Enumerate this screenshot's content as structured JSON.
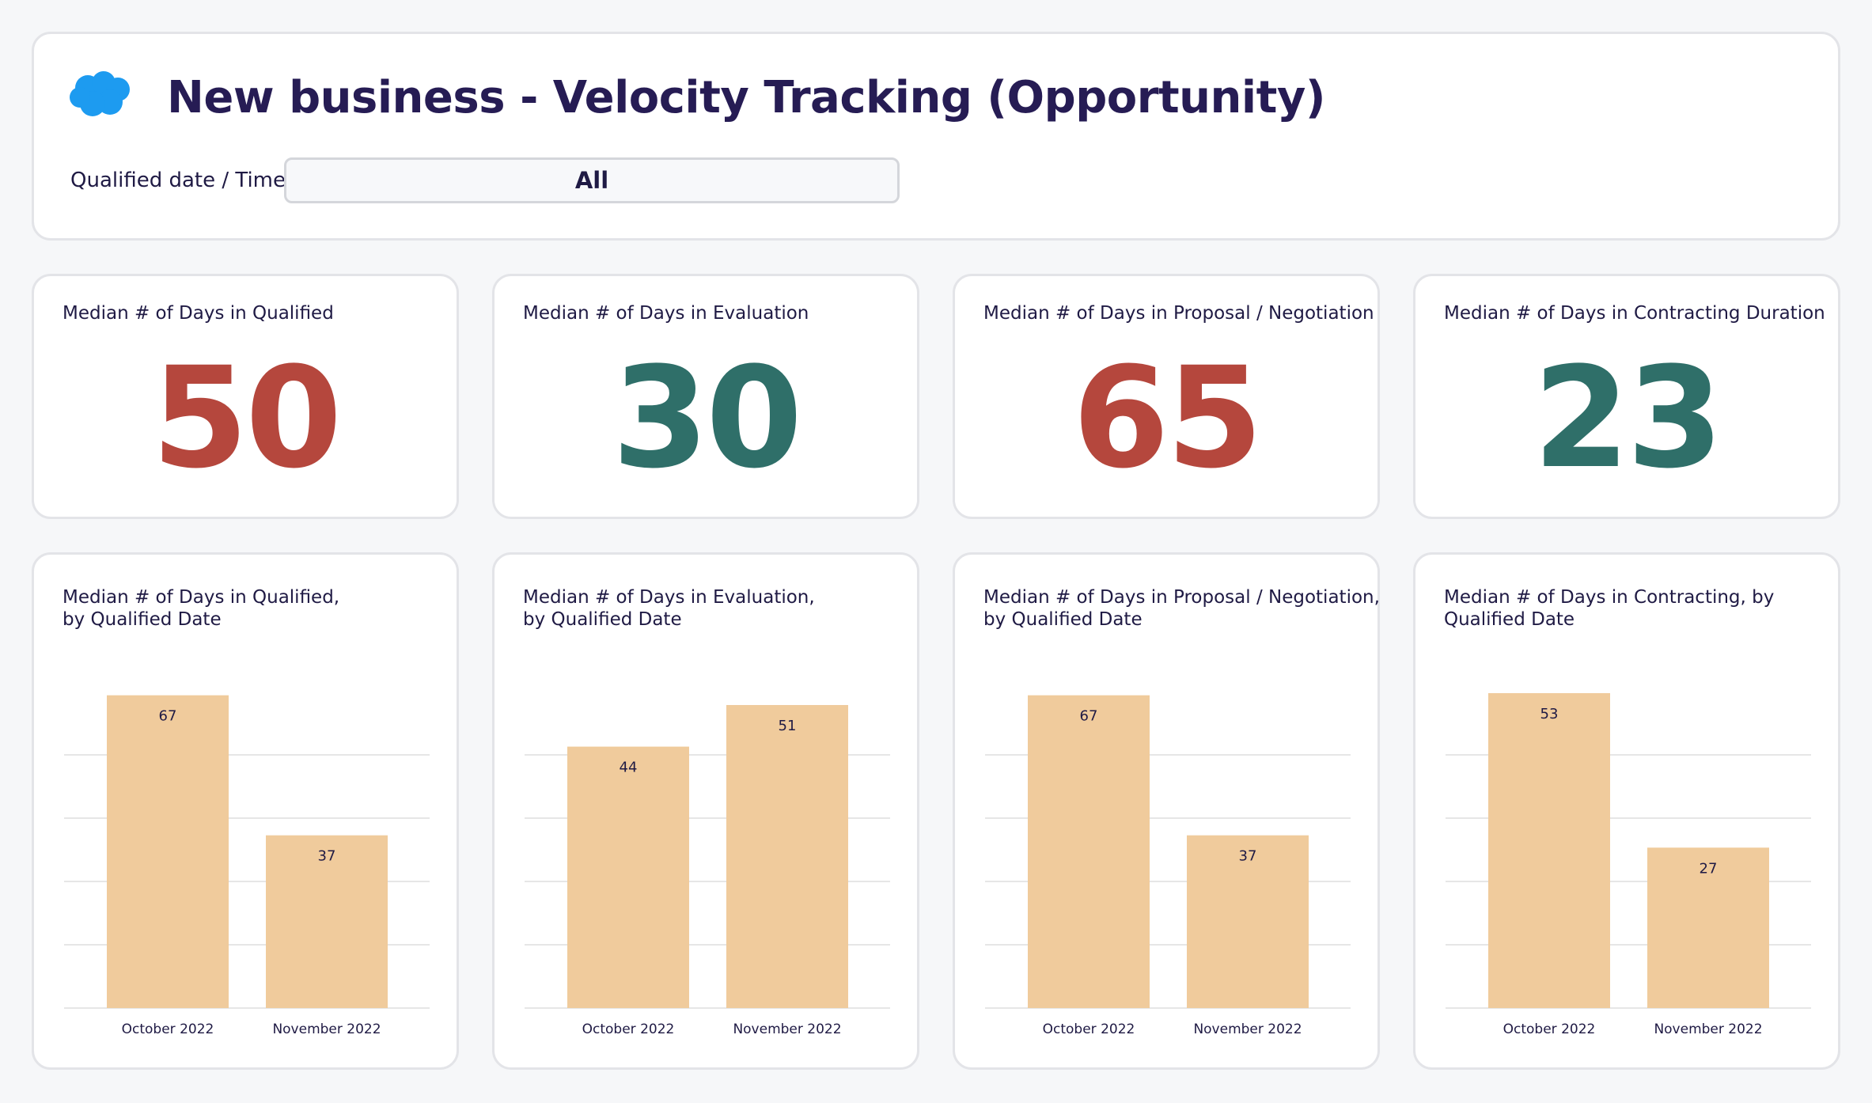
{
  "header": {
    "logo_icon": "salesforce-cloud-icon",
    "title": "New business - Velocity Tracking (Opportunity)",
    "filter_label": "Qualified date / Time",
    "filter_value": "All"
  },
  "colors": {
    "red": "#b5473d",
    "teal": "#2f6f69",
    "bar": "#f0cb9c",
    "grid": "#e6e6e6",
    "logo": "#1d9bf0"
  },
  "kpis": [
    {
      "label": "Median # of Days in Qualified",
      "value": "50",
      "color": "#b5473d"
    },
    {
      "label": "Median # of Days in Evaluation",
      "value": "30",
      "color": "#2f6f69"
    },
    {
      "label": "Median # of Days in Proposal / Negotiation",
      "value": "65",
      "color": "#b5473d"
    },
    {
      "label": "Median # of Days in Contracting Duration",
      "value": "23",
      "color": "#2f6f69"
    }
  ],
  "charts": [
    {
      "title_line1": "Median # of Days in Qualified,",
      "title_line2": "by Qualified Date"
    },
    {
      "title_line1": "Median # of Days in Evaluation,",
      "title_line2": "by Qualified Date"
    },
    {
      "title_line1": "Median # of Days in Proposal / Negotiation,",
      "title_line2": "by Qualified Date"
    },
    {
      "title_line1": "Median # of Days in Contracting, by",
      "title_line2": "Qualified Date"
    }
  ],
  "chart_data": [
    {
      "type": "bar",
      "title": "Median # of Days in Qualified, by Qualified Date",
      "categories": [
        "October 2022",
        "November 2022"
      ],
      "values": [
        67,
        37
      ],
      "ylim": [
        0,
        70
      ]
    },
    {
      "type": "bar",
      "title": "Median # of Days in Evaluation, by Qualified Date",
      "categories": [
        "October 2022",
        "November 2022"
      ],
      "values": [
        44,
        51
      ],
      "ylim": [
        0,
        55
      ]
    },
    {
      "type": "bar",
      "title": "Median # of Days in Proposal / Negotiation, by Qualified Date",
      "categories": [
        "October 2022",
        "November 2022"
      ],
      "values": [
        67,
        37
      ],
      "ylim": [
        0,
        70
      ]
    },
    {
      "type": "bar",
      "title": "Median # of Days in Contracting, by Qualified Date",
      "categories": [
        "October 2022",
        "November 2022"
      ],
      "values": [
        53,
        27
      ],
      "ylim": [
        0,
        55
      ]
    }
  ]
}
